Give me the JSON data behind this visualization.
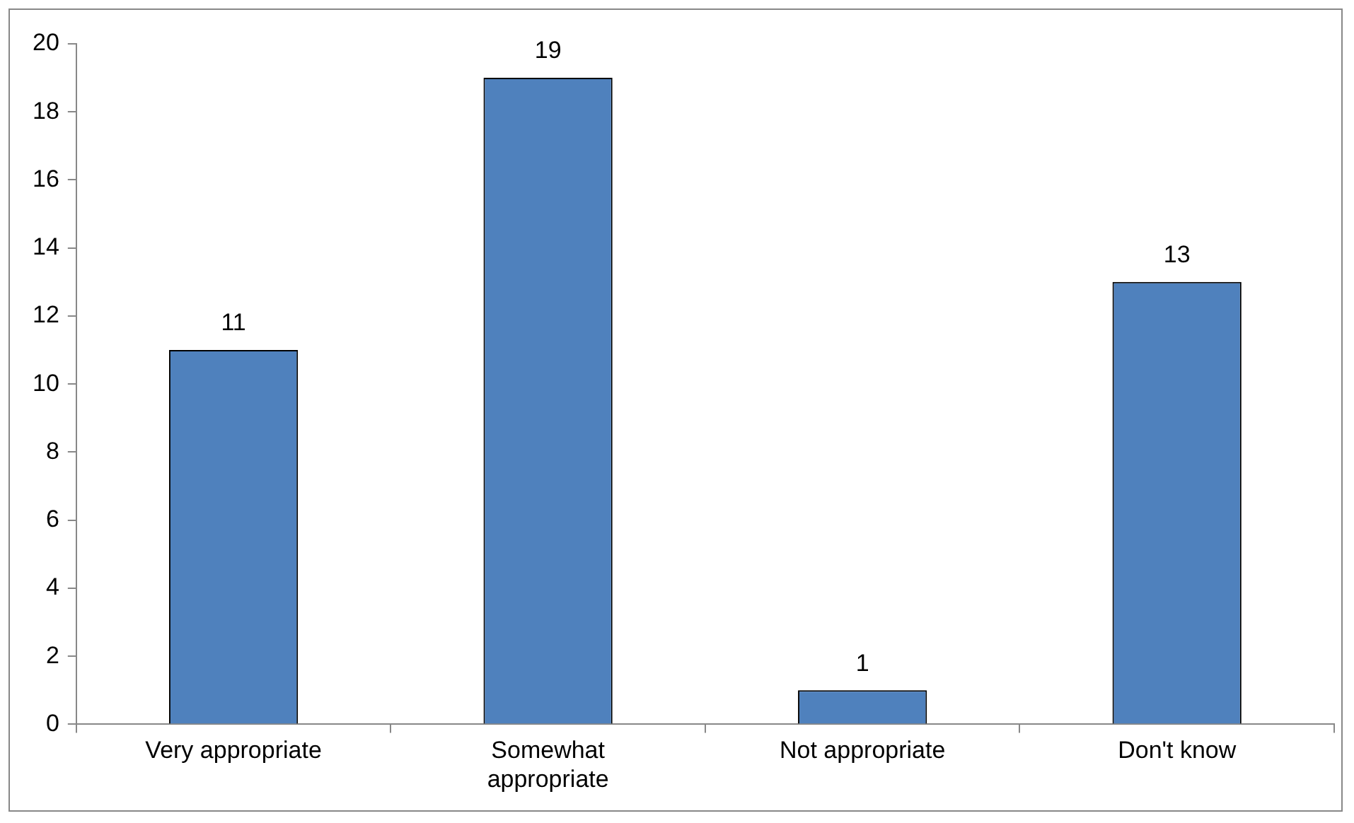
{
  "chart_data": {
    "type": "bar",
    "categories": [
      "Very appropriate",
      "Somewhat appropriate",
      "Not appropriate",
      "Don't know"
    ],
    "values": [
      11,
      19,
      1,
      13
    ],
    "color": "#4f81bd",
    "ylim": [
      0,
      20
    ],
    "yticks": [
      0,
      2,
      4,
      6,
      8,
      10,
      12,
      14,
      16,
      18,
      20
    ],
    "grid": false,
    "legend": false,
    "data_labels": true
  }
}
